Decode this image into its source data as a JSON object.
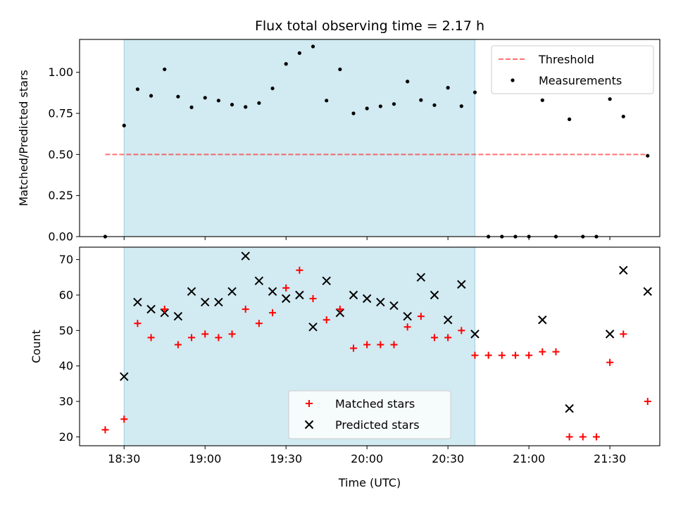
{
  "chart_data": {
    "type": "scatter",
    "title": "Flux total observing time = 2.17 h",
    "xlabel": "Time (UTC)",
    "x_tick_labels": [
      "18:30",
      "19:00",
      "19:30",
      "20:00",
      "20:30",
      "21:00",
      "21:30"
    ],
    "x_ticks_min": [
      1110,
      1140,
      1170,
      1200,
      1230,
      1260,
      1290
    ],
    "xlim_min": [
      1093.5,
      1308.5
    ],
    "shaded_region_min": [
      1110,
      1240
    ],
    "colors": {
      "shade": "#add8e6",
      "threshold": "#ff0000",
      "matched": "#ff0000",
      "predicted": "#000000",
      "measurements": "#000000"
    },
    "panels": [
      {
        "name": "ratio",
        "ylabel": "Matched/Predicted stars",
        "ylim": [
          0,
          1.2
        ],
        "y_ticks": [
          0,
          0.25,
          0.5,
          0.75,
          1.0
        ],
        "y_tick_labels": [
          "0.00",
          "0.25",
          "0.50",
          "0.75",
          "1.00"
        ],
        "legend": {
          "placement": "upper right",
          "entries": [
            "Threshold",
            "Measurements"
          ]
        },
        "threshold": {
          "name": "Threshold",
          "y": 0.5,
          "x_range_min": [
            1103,
            1304
          ]
        },
        "series": [
          {
            "name": "Measurements",
            "type": "scatter",
            "points": [
              [
                1103,
                0.0
              ],
              [
                1110,
                0.676
              ],
              [
                1115,
                0.897
              ],
              [
                1120,
                0.857
              ],
              [
                1125,
                1.018
              ],
              [
                1130,
                0.852
              ],
              [
                1135,
                0.787
              ],
              [
                1140,
                0.845
              ],
              [
                1145,
                0.828
              ],
              [
                1150,
                0.803
              ],
              [
                1155,
                0.789
              ],
              [
                1160,
                0.813
              ],
              [
                1165,
                0.902
              ],
              [
                1170,
                1.051
              ],
              [
                1175,
                1.117
              ],
              [
                1180,
                1.157
              ],
              [
                1185,
                0.828
              ],
              [
                1190,
                1.018
              ],
              [
                1195,
                0.75
              ],
              [
                1200,
                0.78
              ],
              [
                1205,
                0.793
              ],
              [
                1210,
                0.807
              ],
              [
                1215,
                0.944
              ],
              [
                1220,
                0.831
              ],
              [
                1225,
                0.8
              ],
              [
                1230,
                0.906
              ],
              [
                1235,
                0.794
              ],
              [
                1240,
                0.878
              ],
              [
                1245,
                0.0
              ],
              [
                1250,
                0.0
              ],
              [
                1255,
                0.0
              ],
              [
                1260,
                0.0
              ],
              [
                1265,
                0.83
              ],
              [
                1270,
                0.0
              ],
              [
                1275,
                0.714
              ],
              [
                1280,
                0.0
              ],
              [
                1285,
                0.0
              ],
              [
                1290,
                0.837
              ],
              [
                1295,
                0.731
              ],
              [
                1304,
                0.492
              ]
            ]
          }
        ]
      },
      {
        "name": "counts",
        "ylabel": "Count",
        "ylim": [
          17.5,
          73.5
        ],
        "y_ticks": [
          20,
          30,
          40,
          50,
          60,
          70
        ],
        "y_tick_labels": [
          "20",
          "30",
          "40",
          "50",
          "60",
          "70"
        ],
        "legend": {
          "placement": "lower center",
          "entries": [
            "Matched stars",
            "Predicted stars"
          ]
        },
        "series": [
          {
            "name": "Matched stars",
            "marker": "plus",
            "points": [
              [
                1103,
                22
              ],
              [
                1110,
                25
              ],
              [
                1115,
                52
              ],
              [
                1120,
                48
              ],
              [
                1125,
                56
              ],
              [
                1130,
                46
              ],
              [
                1135,
                48
              ],
              [
                1140,
                49
              ],
              [
                1145,
                48
              ],
              [
                1150,
                49
              ],
              [
                1155,
                56
              ],
              [
                1160,
                52
              ],
              [
                1165,
                55
              ],
              [
                1170,
                62
              ],
              [
                1175,
                67
              ],
              [
                1180,
                59
              ],
              [
                1185,
                53
              ],
              [
                1190,
                56
              ],
              [
                1195,
                45
              ],
              [
                1200,
                46
              ],
              [
                1205,
                46
              ],
              [
                1210,
                46
              ],
              [
                1215,
                51
              ],
              [
                1220,
                54
              ],
              [
                1225,
                48
              ],
              [
                1230,
                48
              ],
              [
                1235,
                50
              ],
              [
                1240,
                43
              ],
              [
                1245,
                43
              ],
              [
                1250,
                43
              ],
              [
                1255,
                43
              ],
              [
                1260,
                43
              ],
              [
                1265,
                44
              ],
              [
                1270,
                44
              ],
              [
                1275,
                20
              ],
              [
                1280,
                20
              ],
              [
                1285,
                20
              ],
              [
                1290,
                41
              ],
              [
                1295,
                49
              ],
              [
                1304,
                30
              ]
            ]
          },
          {
            "name": "Predicted stars",
            "marker": "x",
            "points": [
              [
                1110,
                37
              ],
              [
                1115,
                58
              ],
              [
                1120,
                56
              ],
              [
                1125,
                55
              ],
              [
                1130,
                54
              ],
              [
                1135,
                61
              ],
              [
                1140,
                58
              ],
              [
                1145,
                58
              ],
              [
                1150,
                61
              ],
              [
                1155,
                71
              ],
              [
                1160,
                64
              ],
              [
                1165,
                61
              ],
              [
                1170,
                59
              ],
              [
                1175,
                60
              ],
              [
                1180,
                51
              ],
              [
                1185,
                64
              ],
              [
                1190,
                55
              ],
              [
                1195,
                60
              ],
              [
                1200,
                59
              ],
              [
                1205,
                58
              ],
              [
                1210,
                57
              ],
              [
                1215,
                54
              ],
              [
                1220,
                65
              ],
              [
                1225,
                60
              ],
              [
                1230,
                53
              ],
              [
                1235,
                63
              ],
              [
                1240,
                49
              ],
              [
                1265,
                53
              ],
              [
                1275,
                28
              ],
              [
                1290,
                49
              ],
              [
                1295,
                67
              ],
              [
                1304,
                61
              ]
            ]
          }
        ]
      }
    ]
  }
}
